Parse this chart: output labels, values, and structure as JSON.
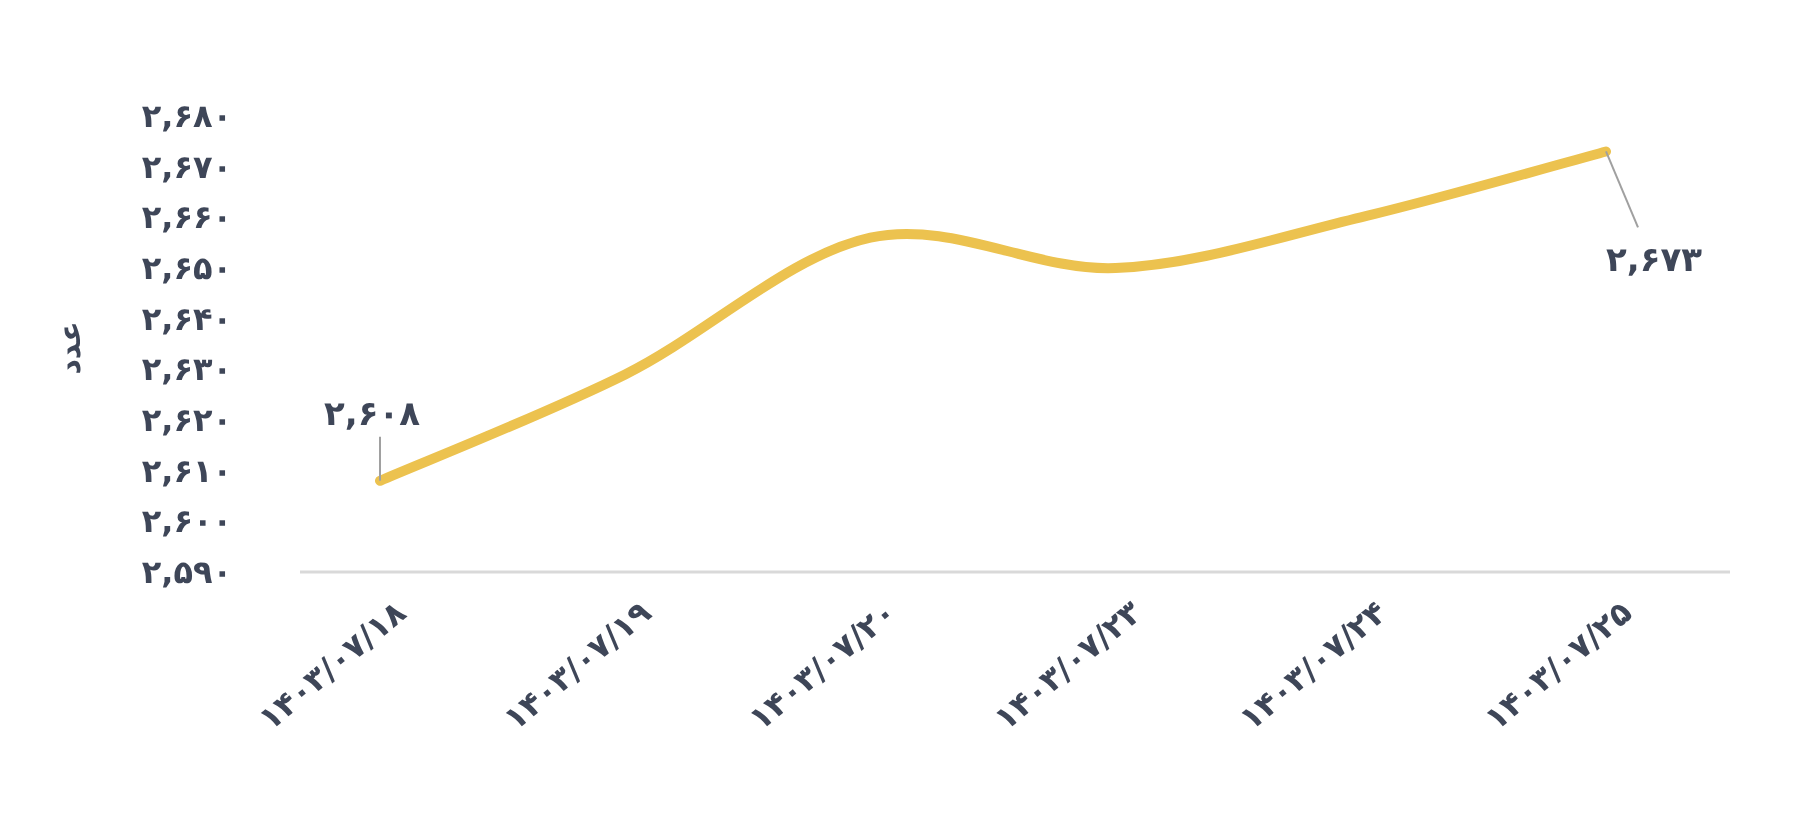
{
  "chart_data": {
    "type": "line",
    "ylabel": "عدد",
    "categories": [
      "۱۴۰۳/۰۷/۱۸",
      "۱۴۰۳/۰۷/۱۹",
      "۱۴۰۳/۰۷/۲۰",
      "۱۴۰۳/۰۷/۲۳",
      "۱۴۰۳/۰۷/۲۴",
      "۱۴۰۳/۰۷/۲۵"
    ],
    "series": [
      {
        "color": "#ecc24f",
        "values": [
          2608,
          2629,
          2656,
          2650,
          2660,
          2673
        ],
        "value_labels": [
          "۲,۶۰۸",
          null,
          null,
          null,
          null,
          "۲,۶۷۳"
        ]
      }
    ],
    "ylim": [
      2590,
      2680
    ],
    "yticks": [
      {
        "value": 2590,
        "label": "۲,۵۹۰"
      },
      {
        "value": 2600,
        "label": "۲,۶۰۰"
      },
      {
        "value": 2610,
        "label": "۲,۶۱۰"
      },
      {
        "value": 2620,
        "label": "۲,۶۲۰"
      },
      {
        "value": 2630,
        "label": "۲,۶۳۰"
      },
      {
        "value": 2640,
        "label": "۲,۶۴۰"
      },
      {
        "value": 2650,
        "label": "۲,۶۵۰"
      },
      {
        "value": 2660,
        "label": "۲,۶۶۰"
      },
      {
        "value": 2670,
        "label": "۲,۶۷۰"
      },
      {
        "value": 2680,
        "label": "۲,۶۸۰"
      }
    ]
  }
}
